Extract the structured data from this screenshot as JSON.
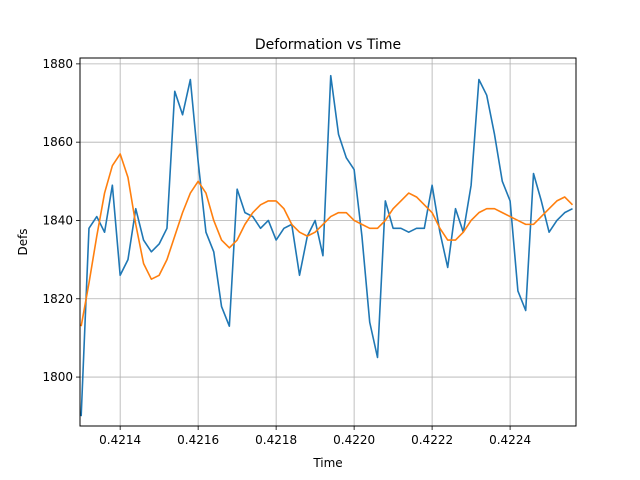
{
  "chart_data": {
    "type": "line",
    "title": "Deformation vs Time",
    "xlabel": "Time",
    "ylabel": "Defs",
    "x": [
      0.4213,
      0.42132,
      0.42134,
      0.42136,
      0.42138,
      0.4214,
      0.42142,
      0.42144,
      0.42146,
      0.42148,
      0.4215,
      0.42152,
      0.42154,
      0.42156,
      0.42158,
      0.4216,
      0.42162,
      0.42164,
      0.42166,
      0.42168,
      0.4217,
      0.42172,
      0.42174,
      0.42176,
      0.42178,
      0.4218,
      0.42182,
      0.42184,
      0.42186,
      0.42188,
      0.4219,
      0.42192,
      0.42194,
      0.42196,
      0.42198,
      0.422,
      0.42202,
      0.42204,
      0.42206,
      0.42208,
      0.4221,
      0.42212,
      0.42214,
      0.42216,
      0.42218,
      0.4222,
      0.42222,
      0.42224,
      0.42226,
      0.42228,
      0.4223,
      0.42232,
      0.42234,
      0.42236,
      0.42238,
      0.4224,
      0.42242,
      0.42244,
      0.42246,
      0.42248,
      0.4225,
      0.42252,
      0.42254,
      0.42256
    ],
    "series": [
      {
        "color": "#1f77b4",
        "values": [
          1790,
          1838,
          1841,
          1837,
          1849,
          1826,
          1830,
          1843,
          1835,
          1832,
          1834,
          1838,
          1873,
          1867,
          1876,
          1855,
          1837,
          1832,
          1818,
          1813,
          1848,
          1842,
          1841,
          1838,
          1840,
          1835,
          1838,
          1839,
          1826,
          1836,
          1840,
          1831,
          1877,
          1862,
          1856,
          1853,
          1836,
          1814,
          1805,
          1845,
          1838,
          1838,
          1837,
          1838,
          1838,
          1849,
          1837,
          1828,
          1843,
          1837,
          1849,
          1876,
          1872,
          1862,
          1850,
          1845,
          1822,
          1817,
          1852,
          1845,
          1837,
          1840,
          1842,
          1843
        ]
      },
      {
        "color": "#ff7f0e",
        "values": [
          1813,
          1824,
          1836,
          1847,
          1854,
          1857,
          1851,
          1839,
          1829,
          1825,
          1826,
          1830,
          1836,
          1842,
          1847,
          1850,
          1847,
          1840,
          1835,
          1833,
          1835,
          1839,
          1842,
          1844,
          1845,
          1845,
          1843,
          1839,
          1837,
          1836,
          1837,
          1839,
          1841,
          1842,
          1842,
          1840,
          1839,
          1838,
          1838,
          1840,
          1843,
          1845,
          1847,
          1846,
          1844,
          1842,
          1838,
          1835,
          1835,
          1837,
          1840,
          1842,
          1843,
          1843,
          1842,
          1841,
          1840,
          1839,
          1839,
          1841,
          1843,
          1845,
          1846,
          1844
        ]
      }
    ],
    "xlim": [
      0.421297,
      0.422569
    ],
    "ylim": [
      1787.5,
      1881.5
    ],
    "xticks": [
      0.4214,
      0.4216,
      0.4218,
      {
        "value": 0.422,
        "label": "0.4220"
      },
      0.4222,
      0.4224
    ],
    "yticks": [
      1800,
      1820,
      1840,
      1860,
      1880
    ],
    "grid": true
  }
}
